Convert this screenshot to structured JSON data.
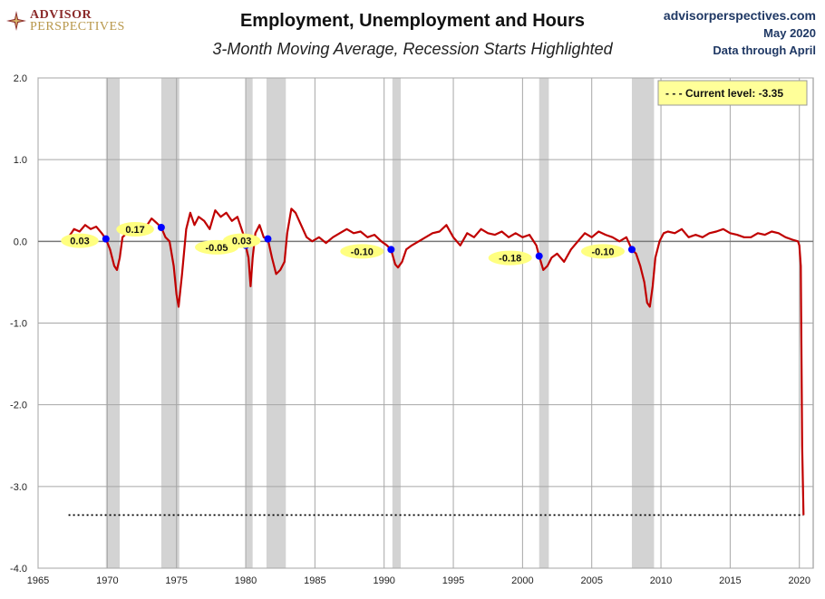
{
  "header": {
    "logo_line1": "ADVISOR",
    "logo_line2": "PERSPECTIVES",
    "title": "Employment, Unemployment and Hours",
    "subtitle": "3-Month Moving Average, Recession Starts Highlighted",
    "source_site": "advisorperspectives.com",
    "source_date": "May 2020",
    "source_through": "Data through April"
  },
  "colors": {
    "line": "#c00000",
    "recession": "#d3d3d3",
    "marker": "#0000ff",
    "label_bg": "#ffff80",
    "grid": "#a6a6a6",
    "logo_accent": "#8b2a2a"
  },
  "chart_data": {
    "type": "line",
    "xlim": [
      1965,
      2021
    ],
    "ylim": [
      -4.0,
      2.0
    ],
    "x_ticks": [
      "1965",
      "1970",
      "1975",
      "1980",
      "1985",
      "1990",
      "1995",
      "2000",
      "2005",
      "2010",
      "2015",
      "2020"
    ],
    "y_ticks": [
      "2.0",
      "1.0",
      "0.0",
      "-1.0",
      "-2.0",
      "-3.0",
      "-4.0"
    ],
    "grid": true,
    "recessions": [
      [
        1969.9,
        1970.9
      ],
      [
        1973.9,
        1975.2
      ],
      [
        1980.0,
        1980.5
      ],
      [
        1981.5,
        1982.9
      ],
      [
        1990.6,
        1991.2
      ],
      [
        2001.2,
        2001.9
      ],
      [
        2007.9,
        2009.5
      ]
    ],
    "recession_start_points": [
      {
        "x": 1969.9,
        "y": 0.03,
        "label": "0.03"
      },
      {
        "x": 1973.9,
        "y": 0.17,
        "label": "0.17"
      },
      {
        "x": 1980.0,
        "y": -0.05,
        "label": "-0.05"
      },
      {
        "x": 1981.6,
        "y": 0.03,
        "label": "0.03"
      },
      {
        "x": 1990.5,
        "y": -0.1,
        "label": "-0.10"
      },
      {
        "x": 2001.2,
        "y": -0.18,
        "label": "-0.18"
      },
      {
        "x": 2007.9,
        "y": -0.1,
        "label": "-0.10"
      }
    ],
    "series": [
      {
        "x": [
          1967.2,
          1967.6,
          1968.0,
          1968.4,
          1968.8,
          1969.2,
          1969.6,
          1969.9,
          1970.2,
          1970.5,
          1970.7,
          1970.9,
          1971.1,
          1971.4,
          1971.7,
          1972.0,
          1972.4,
          1972.8,
          1973.2,
          1973.6,
          1973.9,
          1974.2,
          1974.5,
          1974.8,
          1975.0,
          1975.15,
          1975.4,
          1975.7,
          1976.0,
          1976.3,
          1976.6,
          1977.0,
          1977.4,
          1977.8,
          1978.2,
          1978.6,
          1979.0,
          1979.4,
          1979.8,
          1980.0,
          1980.2,
          1980.35,
          1980.5,
          1980.7,
          1981.0,
          1981.3,
          1981.6,
          1981.9,
          1982.2,
          1982.5,
          1982.8,
          1983.0,
          1983.3,
          1983.6,
          1984.0,
          1984.4,
          1984.8,
          1985.3,
          1985.8,
          1986.3,
          1986.8,
          1987.3,
          1987.8,
          1988.3,
          1988.8,
          1989.3,
          1989.8,
          1990.2,
          1990.5,
          1990.8,
          1991.0,
          1991.3,
          1991.6,
          1992.0,
          1992.5,
          1993.0,
          1993.5,
          1994.0,
          1994.5,
          1995.0,
          1995.5,
          1996.0,
          1996.5,
          1997.0,
          1997.5,
          1998.0,
          1998.5,
          1999.0,
          1999.5,
          2000.0,
          2000.5,
          2001.0,
          2001.2,
          2001.5,
          2001.8,
          2002.1,
          2002.5,
          2003.0,
          2003.5,
          2004.0,
          2004.5,
          2005.0,
          2005.5,
          2006.0,
          2006.5,
          2007.0,
          2007.5,
          2007.9,
          2008.2,
          2008.5,
          2008.8,
          2009.0,
          2009.2,
          2009.4,
          2009.6,
          2009.9,
          2010.2,
          2010.5,
          2011.0,
          2011.5,
          2012.0,
          2012.5,
          2013.0,
          2013.5,
          2014.0,
          2014.5,
          2015.0,
          2015.5,
          2016.0,
          2016.5,
          2017.0,
          2017.5,
          2018.0,
          2018.5,
          2019.0,
          2019.5,
          2019.9,
          2020.0,
          2020.1,
          2020.2,
          2020.3
        ],
        "y": [
          0.05,
          0.15,
          0.12,
          0.2,
          0.15,
          0.18,
          0.1,
          0.03,
          -0.1,
          -0.3,
          -0.35,
          -0.2,
          0.05,
          0.1,
          0.12,
          0.15,
          0.2,
          0.18,
          0.28,
          0.22,
          0.17,
          0.05,
          0.0,
          -0.3,
          -0.65,
          -0.8,
          -0.4,
          0.15,
          0.35,
          0.2,
          0.3,
          0.25,
          0.15,
          0.38,
          0.3,
          0.35,
          0.25,
          0.3,
          0.1,
          -0.05,
          -0.2,
          -0.55,
          -0.2,
          0.1,
          0.2,
          0.05,
          0.03,
          -0.2,
          -0.4,
          -0.35,
          -0.25,
          0.1,
          0.4,
          0.35,
          0.2,
          0.05,
          0.0,
          0.05,
          -0.02,
          0.05,
          0.1,
          0.15,
          0.1,
          0.12,
          0.05,
          0.08,
          0.0,
          -0.05,
          -0.1,
          -0.28,
          -0.32,
          -0.25,
          -0.1,
          -0.05,
          0.0,
          0.05,
          0.1,
          0.12,
          0.2,
          0.05,
          -0.05,
          0.1,
          0.05,
          0.15,
          0.1,
          0.08,
          0.12,
          0.05,
          0.1,
          0.05,
          0.08,
          -0.05,
          -0.18,
          -0.35,
          -0.3,
          -0.2,
          -0.15,
          -0.25,
          -0.1,
          0.0,
          0.1,
          0.05,
          0.12,
          0.08,
          0.05,
          0.0,
          0.05,
          -0.1,
          -0.15,
          -0.3,
          -0.5,
          -0.75,
          -0.8,
          -0.55,
          -0.2,
          0.0,
          0.1,
          0.12,
          0.1,
          0.15,
          0.05,
          0.08,
          0.05,
          0.1,
          0.12,
          0.15,
          0.1,
          0.08,
          0.05,
          0.05,
          0.1,
          0.08,
          0.12,
          0.1,
          0.05,
          0.02,
          0.0,
          -0.05,
          -0.3,
          -2.5,
          -3.35
        ]
      }
    ],
    "current_level": {
      "value": -3.35,
      "label": "- - -  Current level:  -3.35"
    }
  }
}
